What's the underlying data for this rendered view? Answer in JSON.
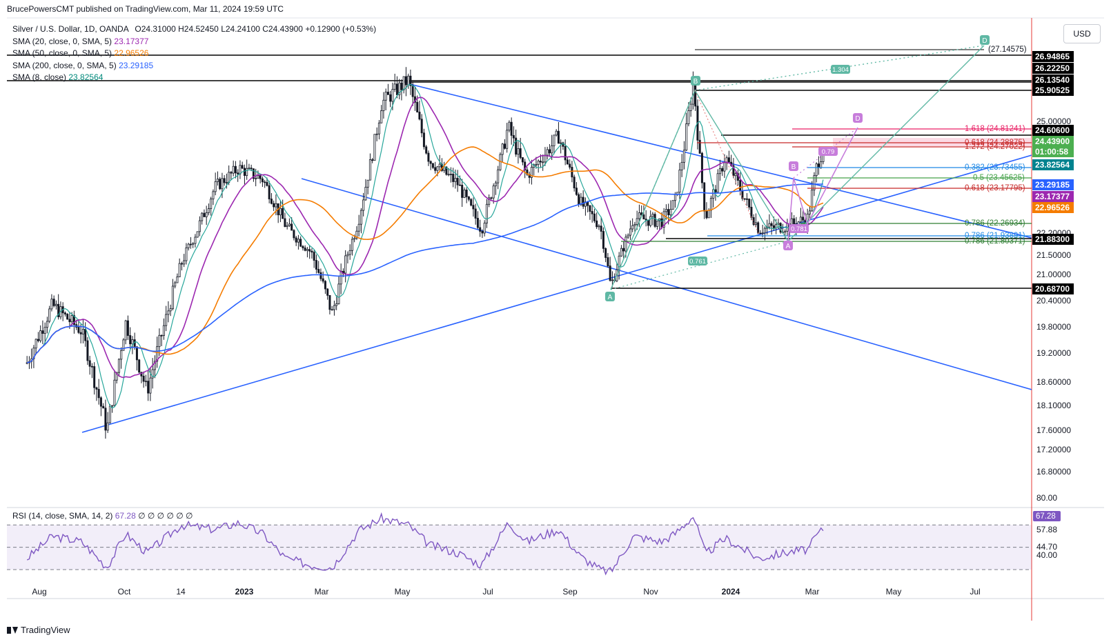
{
  "header": {
    "published_by": "BrucePowersCMT published on TradingView.com, Mar 11, 2024 19:59 UTC"
  },
  "legend": {
    "symbol": "Silver / U.S. Dollar, 1D, OANDA",
    "o": "O24.31000",
    "h": "H24.52450",
    "l": "L24.24100",
    "c": "C24.43900",
    "chg": "+0.12900 (+0.53%)",
    "indicators": [
      {
        "label": "SMA (20, close, 0, SMA, 5)",
        "value": "23.17377",
        "color": "#9c27b0"
      },
      {
        "label": "SMA (50, close, 0, SMA, 5)",
        "value": "22.96526",
        "color": "#f57c00"
      },
      {
        "label": "SMA (200, close, 0, SMA, 5)",
        "value": "23.29185",
        "color": "#2962ff"
      },
      {
        "label": "SMA (8, close)",
        "value": "23.82564",
        "color": "#00897b"
      }
    ]
  },
  "currency": "USD",
  "rsi_legend": {
    "label": "RSI (14, close, SMA, 14, 2)",
    "value": "67.28",
    "extras": "∅ ∅ ∅ ∅ ∅ ∅"
  },
  "brand": "TradingView",
  "chart_data": {
    "type": "candlestick",
    "symbol": "XAGUSD",
    "timeframe": "1D",
    "y_ticks": [
      "25.00000",
      "24.40000",
      "22.20000",
      "21.50000",
      "21.00000",
      "20.40000",
      "19.80000",
      "19.20000",
      "18.60000",
      "18.10000",
      "17.60000",
      "17.20000",
      "16.80000"
    ],
    "y_tick_values": [
      25.0,
      24.4,
      22.2,
      21.5,
      21.0,
      20.4,
      19.8,
      19.2,
      18.6,
      18.1,
      17.6,
      17.2,
      16.8
    ],
    "x_ticks": [
      "Aug",
      "Oct",
      "14",
      "2023",
      "Mar",
      "May",
      "Jul",
      "Sep",
      "Nov",
      "2024",
      "Mar",
      "May",
      "Jul"
    ],
    "price_series": {
      "name": "Silver / U.S. Dollar",
      "x": [
        "2022-07-22",
        "2022-08-10",
        "2022-09-01",
        "2022-09-20",
        "2022-10-04",
        "2022-10-20",
        "2022-11-15",
        "2022-12-10",
        "2022-12-28",
        "2023-01-15",
        "2023-02-01",
        "2023-02-20",
        "2023-03-08",
        "2023-03-28",
        "2023-04-14",
        "2023-05-04",
        "2023-05-20",
        "2023-06-10",
        "2023-06-28",
        "2023-07-18",
        "2023-08-01",
        "2023-08-25",
        "2023-09-10",
        "2023-09-25",
        "2023-10-03",
        "2023-10-20",
        "2023-11-10",
        "2023-11-20",
        "2023-12-04",
        "2023-12-13",
        "2023-12-28",
        "2024-01-22",
        "2024-02-14",
        "2024-02-28",
        "2024-03-05",
        "2024-03-11"
      ],
      "y": [
        19.0,
        20.3,
        19.7,
        17.6,
        19.9,
        18.4,
        21.3,
        23.4,
        23.9,
        23.6,
        22.4,
        21.6,
        20.1,
        22.6,
        25.4,
        25.9,
        24.1,
        23.5,
        22.3,
        24.9,
        23.7,
        24.7,
        23.0,
        22.4,
        20.7,
        22.6,
        22.5,
        23.0,
        25.9,
        22.6,
        24.2,
        22.3,
        22.4,
        22.6,
        23.9,
        24.44
      ]
    },
    "sma_series": [
      {
        "name": "SMA (20, close, 0, SMA, 5)",
        "last": 23.17377,
        "color": "#9c27b0"
      },
      {
        "name": "SMA (50, close, 0, SMA, 5)",
        "last": 22.96526,
        "color": "#f57c00"
      },
      {
        "name": "SMA (200, close, 0, SMA, 5)",
        "last": 23.29185,
        "color": "#2962ff"
      },
      {
        "name": "SMA (8, close)",
        "last": 23.82564,
        "color": "#00897b"
      }
    ],
    "price_labels": [
      {
        "value": "26.94865",
        "bg": "#000000",
        "fg": "#ffffff"
      },
      {
        "value": "26.22250",
        "bg": "#000000",
        "fg": "#ffffff"
      },
      {
        "value": "26.13540",
        "bg": "#000000",
        "fg": "#ffffff"
      },
      {
        "value": "25.90525",
        "bg": "#000000",
        "fg": "#ffffff"
      },
      {
        "value": "24.60600",
        "bg": "#000000",
        "fg": "#ffffff"
      },
      {
        "value": "24.43900",
        "bg": "#4caf50",
        "fg": "#ffffff"
      },
      {
        "value": "01:00:58",
        "bg": "#4caf50",
        "fg": "#ffffff"
      },
      {
        "value": "23.82564",
        "bg": "#00838f",
        "fg": "#ffffff"
      },
      {
        "value": "23.29185",
        "bg": "#2962ff",
        "fg": "#ffffff"
      },
      {
        "value": "23.17377",
        "bg": "#9c27b0",
        "fg": "#ffffff"
      },
      {
        "value": "22.96526",
        "bg": "#f57c00",
        "fg": "#ffffff"
      },
      {
        "value": "21.88300",
        "bg": "#000000",
        "fg": "#ffffff"
      },
      {
        "value": "20.68700",
        "bg": "#000000",
        "fg": "#ffffff"
      }
    ],
    "fib_labels": [
      {
        "text": "(27.14575)",
        "color": "#131722"
      },
      {
        "text": "1.618 (24.81241)",
        "color": "#e91e63"
      },
      {
        "text": "0.618 (24.28875)",
        "color": "#c62828"
      },
      {
        "text": "1.272 (24.27022)",
        "color": "#c62828"
      },
      {
        "text": "0.382 (23.73455)",
        "color": "#1e88e5"
      },
      {
        "text": "0.5 (23.45625)",
        "color": "#43a047"
      },
      {
        "text": "0.618 (23.17795)",
        "color": "#c62828"
      },
      {
        "text": "0.786 (22.26934)",
        "color": "#2e7d32"
      },
      {
        "text": "0.786 (21.93891)",
        "color": "#1e88e5"
      },
      {
        "text": "0.786 (21.80371)",
        "color": "#2e7d32"
      }
    ],
    "pattern_points": [
      "A",
      "B",
      "D",
      "B",
      "D",
      "A"
    ],
    "pattern_ratios": [
      "1.304",
      "0.761",
      "0.781",
      "0.79"
    ],
    "rsi": {
      "period": 14,
      "last": 67.28,
      "y_ticks": [
        "80.00",
        "57.88",
        "44.70",
        "40.00"
      ],
      "x": [
        "2022-07-22",
        "2022-08-10",
        "2022-09-01",
        "2022-09-20",
        "2022-10-04",
        "2022-10-20",
        "2022-11-15",
        "2022-12-10",
        "2022-12-28",
        "2023-01-15",
        "2023-02-01",
        "2023-02-20",
        "2023-03-08",
        "2023-03-28",
        "2023-04-14",
        "2023-05-04",
        "2023-05-20",
        "2023-06-10",
        "2023-06-28",
        "2023-07-18",
        "2023-08-01",
        "2023-08-25",
        "2023-09-10",
        "2023-09-25",
        "2023-10-03",
        "2023-10-20",
        "2023-11-10",
        "2023-11-20",
        "2023-12-04",
        "2023-12-13",
        "2023-12-28",
        "2024-01-22",
        "2024-02-14",
        "2024-02-28",
        "2024-03-05",
        "2024-03-11"
      ],
      "values": [
        40,
        60,
        55,
        32,
        62,
        45,
        70,
        66,
        72,
        62,
        40,
        34,
        32,
        65,
        76,
        70,
        52,
        45,
        34,
        72,
        55,
        66,
        42,
        30,
        28,
        60,
        55,
        62,
        78,
        44,
        58,
        40,
        46,
        48,
        60,
        67.28
      ],
      "levels": [
        70,
        50,
        30
      ]
    }
  }
}
